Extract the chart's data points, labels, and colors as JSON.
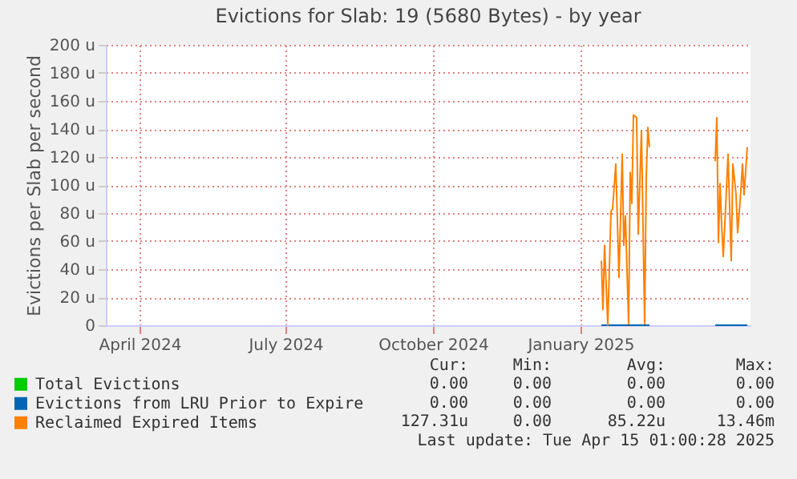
{
  "chart_data": {
    "type": "line",
    "title": "Evictions for Slab: 19 (5680 Bytes) - by year",
    "ylabel": "Evictions per Slab per second",
    "xlim": [
      "2024-03-11",
      "2025-04-17"
    ],
    "xticks": [
      {
        "value": "2024-04-01",
        "label": "April 2024"
      },
      {
        "value": "2024-07-01",
        "label": "July 2024"
      },
      {
        "value": "2024-10-01",
        "label": "October 2024"
      },
      {
        "value": "2025-01-01",
        "label": "January 2025"
      }
    ],
    "ylim": [
      0,
      200
    ],
    "yticks": [
      0,
      {
        "value": 20,
        "label": "20 u"
      },
      {
        "value": 40,
        "label": "40 u"
      },
      {
        "value": 60,
        "label": "60 u"
      },
      {
        "value": 80,
        "label": "80 u"
      },
      {
        "value": 100,
        "label": "100 u"
      },
      {
        "value": 120,
        "label": "120 u"
      },
      {
        "value": 140,
        "label": "140 u"
      },
      {
        "value": 160,
        "label": "160 u"
      },
      {
        "value": 180,
        "label": "180 u"
      },
      {
        "value": 200,
        "label": "200 u"
      }
    ],
    "grid": true,
    "legend": "bottom left",
    "marker": "none",
    "line_style": "solid",
    "series": [
      {
        "name": "Total Evictions",
        "color": "#00cc00"
      },
      {
        "name": "Evictions from LRU Prior to Expire",
        "color": "#0066b3",
        "x": [
          "2025-01-14",
          "2025-02-13",
          "2025-03-01",
          "2025-03-26",
          "2025-04-15"
        ],
        "values": [
          0,
          0,
          null,
          0,
          0
        ]
      },
      {
        "name": "Reclaimed Expired Items",
        "color": "#ff8000",
        "x": [
          "2025-01-14",
          "2025-01-15",
          "2025-01-16",
          "2025-01-18",
          "2025-01-20",
          "2025-01-21",
          "2025-01-23",
          "2025-01-25",
          "2025-01-27",
          "2025-01-28",
          "2025-01-29",
          "2025-01-31",
          "2025-02-01",
          "2025-02-02",
          "2025-02-03",
          "2025-02-05",
          "2025-02-06",
          "2025-02-08",
          "2025-02-10",
          "2025-02-11",
          "2025-02-12",
          "2025-02-13",
          "2025-03-01",
          "2025-03-26",
          "2025-03-27",
          "2025-03-28",
          "2025-03-29",
          "2025-03-30",
          "2025-03-31",
          "2025-04-01",
          "2025-04-03",
          "2025-04-05",
          "2025-04-06",
          "2025-04-08",
          "2025-04-09",
          "2025-04-11",
          "2025-04-12",
          "2025-04-13",
          "2025-04-15"
        ],
        "values": [
          46,
          11,
          57,
          0,
          81,
          83,
          115,
          34,
          122,
          57,
          78,
          1,
          109,
          87,
          150,
          148,
          65,
          139,
          1,
          106,
          141,
          127,
          null,
          117,
          148,
          59,
          101,
          72,
          49,
          72,
          122,
          46,
          115,
          93,
          66,
          96,
          115,
          93,
          127
        ]
      }
    ],
    "annotations": [
      "Cur:",
      "Min:",
      "Avg:",
      "Max:",
      "0.00",
      "0.00",
      "0.00",
      "0.00",
      "0.00",
      "0.00",
      "0.00",
      "0.00",
      "127.31u",
      "0.00",
      "85.22u",
      "13.46m",
      "Last update: Tue Apr 15 01:00:28 2025"
    ]
  }
}
